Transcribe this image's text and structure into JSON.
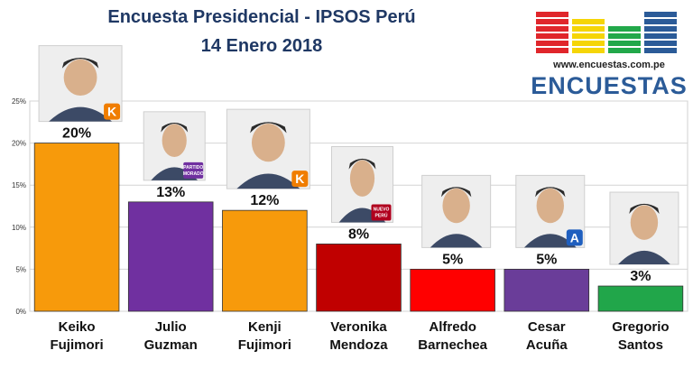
{
  "header": {
    "title": "Encuesta Presidencial - IPSOS Perú",
    "subtitle": "14 Enero 2018"
  },
  "logo": {
    "url": "www.encuestas.com.pe",
    "word": "ENCUESTAS",
    "bars": [
      {
        "color": "#e0262b",
        "level": 1.0
      },
      {
        "color": "#f5d507",
        "level": 0.85
      },
      {
        "color": "#22a84a",
        "level": 0.6
      },
      {
        "color": "#2b5b98",
        "level": 1.0
      }
    ]
  },
  "chart_data": {
    "type": "bar",
    "categories": [
      "Keiko Fujimori",
      "Julio Guzman",
      "Kenji Fujimori",
      "Veronika Mendoza",
      "Alfredo Barnechea",
      "Cesar Acuña",
      "Gregorio Santos"
    ],
    "category_lines": [
      [
        "Keiko",
        "Fujimori"
      ],
      [
        "Julio",
        "Guzman"
      ],
      [
        "Kenji",
        "Fujimori"
      ],
      [
        "Veronika",
        "Mendoza"
      ],
      [
        "Alfredo",
        "Barnechea"
      ],
      [
        "Cesar",
        "Acuña"
      ],
      [
        "Gregorio",
        "Santos"
      ]
    ],
    "values": [
      20,
      13,
      12,
      8,
      5,
      5,
      3
    ],
    "data_labels": [
      "20%",
      "13%",
      "12%",
      "8%",
      "5%",
      "5%",
      "3%"
    ],
    "colors": [
      "#f79a0b",
      "#7030a0",
      "#f79a0b",
      "#c00000",
      "#ff0000",
      "#6a3d99",
      "#21a64a"
    ],
    "ylim": [
      0,
      25
    ],
    "yticks": [
      0,
      5,
      10,
      15,
      20,
      25
    ],
    "ytick_labels": [
      "0%",
      "5%",
      "10%",
      "15%",
      "20%",
      "25%"
    ],
    "grid": true,
    "party_badges": [
      {
        "text": "K",
        "color": "#f07d00"
      },
      {
        "text": "PARTIDO MORADO",
        "color": "#7030a0"
      },
      {
        "text": "K",
        "color": "#f07d00"
      },
      {
        "text": "NUEVO PERÚ",
        "color": "#b0001e"
      },
      {
        "text": "",
        "color": "#222222"
      },
      {
        "text": "A",
        "color": "#1f5fbf"
      },
      {
        "text": "",
        "color": "#e0262b"
      }
    ]
  }
}
